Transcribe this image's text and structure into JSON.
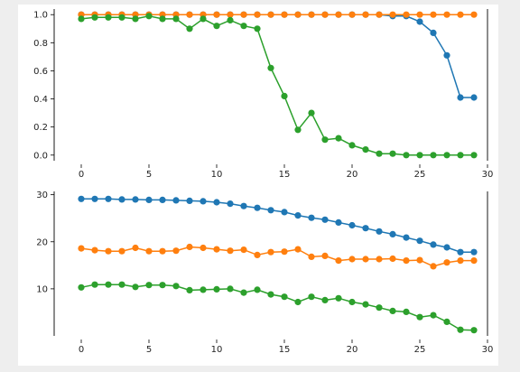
{
  "figure": {
    "background": "#eeeeee",
    "panel_background": "#ffffff"
  },
  "chart_data": [
    {
      "type": "line",
      "title": "",
      "xlabel": "",
      "ylabel": "",
      "xlim": [
        -2,
        30
      ],
      "ylim": [
        -0.04,
        1.04
      ],
      "xticks": [
        0,
        5,
        10,
        15,
        20,
        25,
        30
      ],
      "yticks": [
        0.0,
        0.2,
        0.4,
        0.6,
        0.8,
        1.0
      ],
      "ytick_labels": [
        "0.0",
        "0.2",
        "0.4",
        "0.6",
        "0.8",
        "1.0"
      ],
      "grid": false,
      "legend": "none",
      "x": [
        0,
        1,
        2,
        3,
        4,
        5,
        6,
        7,
        8,
        9,
        10,
        11,
        12,
        13,
        14,
        15,
        16,
        17,
        18,
        19,
        20,
        21,
        22,
        23,
        24,
        25,
        26,
        27,
        28,
        29
      ],
      "series": [
        {
          "color": "#1f77b4",
          "values": [
            1.0,
            1.0,
            1.0,
            1.0,
            1.0,
            1.0,
            1.0,
            1.0,
            1.0,
            1.0,
            1.0,
            1.0,
            1.0,
            1.0,
            1.0,
            1.0,
            1.0,
            1.0,
            1.0,
            1.0,
            1.0,
            1.0,
            1.0,
            0.99,
            0.99,
            0.95,
            0.87,
            0.71,
            0.41,
            0.41
          ]
        },
        {
          "color": "#ff7f0e",
          "values": [
            1.0,
            1.0,
            1.0,
            1.0,
            1.0,
            1.0,
            1.0,
            1.0,
            1.0,
            1.0,
            1.0,
            1.0,
            1.0,
            1.0,
            1.0,
            1.0,
            1.0,
            1.0,
            1.0,
            1.0,
            1.0,
            1.0,
            1.0,
            1.0,
            1.0,
            1.0,
            1.0,
            1.0,
            1.0,
            1.0
          ]
        },
        {
          "color": "#2ca02c",
          "values": [
            0.97,
            0.98,
            0.98,
            0.98,
            0.97,
            0.99,
            0.97,
            0.97,
            0.9,
            0.97,
            0.92,
            0.96,
            0.92,
            0.9,
            0.62,
            0.42,
            0.18,
            0.3,
            0.11,
            0.12,
            0.07,
            0.04,
            0.01,
            0.01,
            0.0,
            0.0,
            0.0,
            0.0,
            0.0,
            0.0
          ]
        }
      ]
    },
    {
      "type": "line",
      "title": "",
      "xlabel": "",
      "ylabel": "",
      "xlim": [
        -2,
        30
      ],
      "ylim": [
        0,
        30.7
      ],
      "xticks": [
        0,
        5,
        10,
        15,
        20,
        25,
        30
      ],
      "yticks": [
        10,
        20,
        30
      ],
      "ytick_labels": [
        "10",
        "20",
        "30"
      ],
      "grid": false,
      "legend": "none",
      "x": [
        0,
        1,
        2,
        3,
        4,
        5,
        6,
        7,
        8,
        9,
        10,
        11,
        12,
        13,
        14,
        15,
        16,
        17,
        18,
        19,
        20,
        21,
        22,
        23,
        24,
        25,
        26,
        27,
        28,
        29
      ],
      "series": [
        {
          "color": "#1f77b4",
          "values": [
            29.1,
            29.1,
            29.1,
            29.0,
            29.0,
            28.9,
            28.9,
            28.8,
            28.7,
            28.6,
            28.4,
            28.1,
            27.6,
            27.2,
            26.7,
            26.3,
            25.6,
            25.1,
            24.7,
            24.1,
            23.5,
            22.9,
            22.2,
            21.6,
            20.9,
            20.2,
            19.4,
            18.8,
            17.8,
            17.8
          ]
        },
        {
          "color": "#ff7f0e",
          "values": [
            18.6,
            18.2,
            18.0,
            18.0,
            18.7,
            18.0,
            18.0,
            18.1,
            18.9,
            18.7,
            18.4,
            18.1,
            18.3,
            17.2,
            17.8,
            17.9,
            18.4,
            16.8,
            17.0,
            16.0,
            16.3,
            16.3,
            16.3,
            16.4,
            16.0,
            16.1,
            14.8,
            15.6,
            16.0,
            16.0
          ]
        },
        {
          "color": "#2ca02c",
          "values": [
            10.3,
            10.9,
            10.9,
            10.9,
            10.4,
            10.8,
            10.8,
            10.6,
            9.7,
            9.8,
            9.9,
            10.0,
            9.2,
            9.8,
            8.8,
            8.3,
            7.2,
            8.3,
            7.6,
            8.0,
            7.2,
            6.7,
            6.0,
            5.3,
            5.1,
            4.0,
            4.4,
            3.0,
            1.3,
            1.2
          ]
        }
      ]
    }
  ]
}
